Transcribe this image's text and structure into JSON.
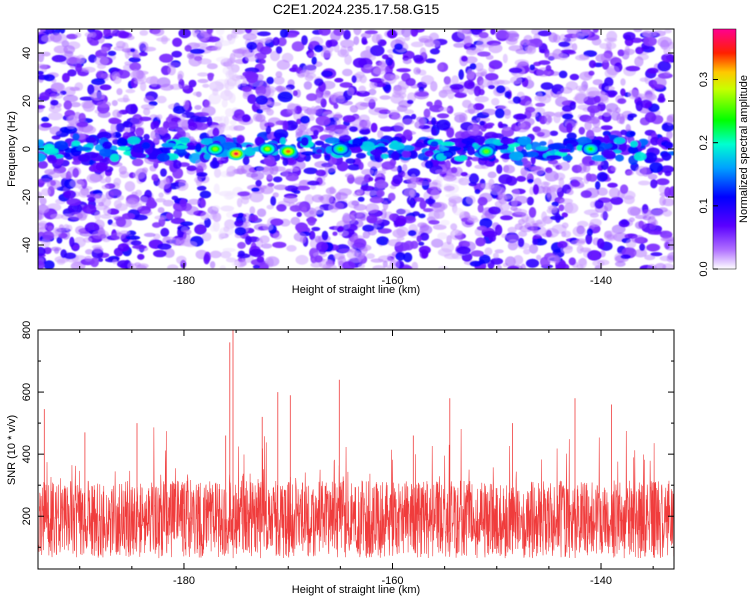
{
  "title": "C2E1.2024.235.17.58.G15",
  "chart_data": [
    {
      "type": "heatmap",
      "xlabel": "Height of straight line (km)",
      "ylabel": "Frequency (Hz)",
      "xlim": [
        -194,
        -133
      ],
      "ylim": [
        -50,
        50
      ],
      "xticks": [
        -180,
        -160,
        -140
      ],
      "yticks": [
        -40,
        -20,
        0,
        20,
        40
      ],
      "colorbar": {
        "label": "Normalized spectral amplitude",
        "range": [
          0,
          0.38
        ],
        "ticks": [
          "0.0",
          "0.1",
          "0.2",
          "0.3"
        ],
        "tick_values": [
          0.0,
          0.1,
          0.2,
          0.3
        ],
        "colors": [
          "#ffffff",
          "#8f00ff",
          "#0000ff",
          "#00ffff",
          "#00ff00",
          "#ffff00",
          "#ff0000",
          "#ff00aa"
        ]
      },
      "features": {
        "band_center_hz": 0,
        "peaks": [
          {
            "x": -175,
            "y": -2,
            "value": 0.36
          },
          {
            "x": -170,
            "y": -1,
            "value": 0.33
          },
          {
            "x": -172,
            "y": 0,
            "value": 0.28
          },
          {
            "x": -177,
            "y": 0,
            "value": 0.27
          },
          {
            "x": -165,
            "y": 0,
            "value": 0.25
          },
          {
            "x": -151,
            "y": -1,
            "value": 0.26
          },
          {
            "x": -141,
            "y": 0,
            "value": 0.24
          }
        ]
      }
    },
    {
      "type": "line",
      "xlabel": "Height of straight line (km)",
      "ylabel": "SNR (10 * v/v)",
      "xlim": [
        -194,
        -133
      ],
      "ylim": [
        30,
        800
      ],
      "xticks": [
        -180,
        -160,
        -140
      ],
      "yticks": [
        200,
        400,
        600,
        800
      ],
      "color": "#f03c3c",
      "baseline_mean": 190,
      "spikes": [
        {
          "x": -175.3,
          "y": 800
        },
        {
          "x": -175.6,
          "y": 760
        },
        {
          "x": -176.0,
          "y": 460
        },
        {
          "x": -172.5,
          "y": 520
        },
        {
          "x": -171.0,
          "y": 600
        },
        {
          "x": -169.8,
          "y": 590
        },
        {
          "x": -165.1,
          "y": 640
        },
        {
          "x": -184.5,
          "y": 500
        },
        {
          "x": -193.4,
          "y": 545
        },
        {
          "x": -154.5,
          "y": 580
        },
        {
          "x": -148.5,
          "y": 500
        },
        {
          "x": -142.5,
          "y": 580
        },
        {
          "x": -139.0,
          "y": 560
        },
        {
          "x": -189.5,
          "y": 470
        },
        {
          "x": -158.0,
          "y": 460
        }
      ]
    }
  ]
}
